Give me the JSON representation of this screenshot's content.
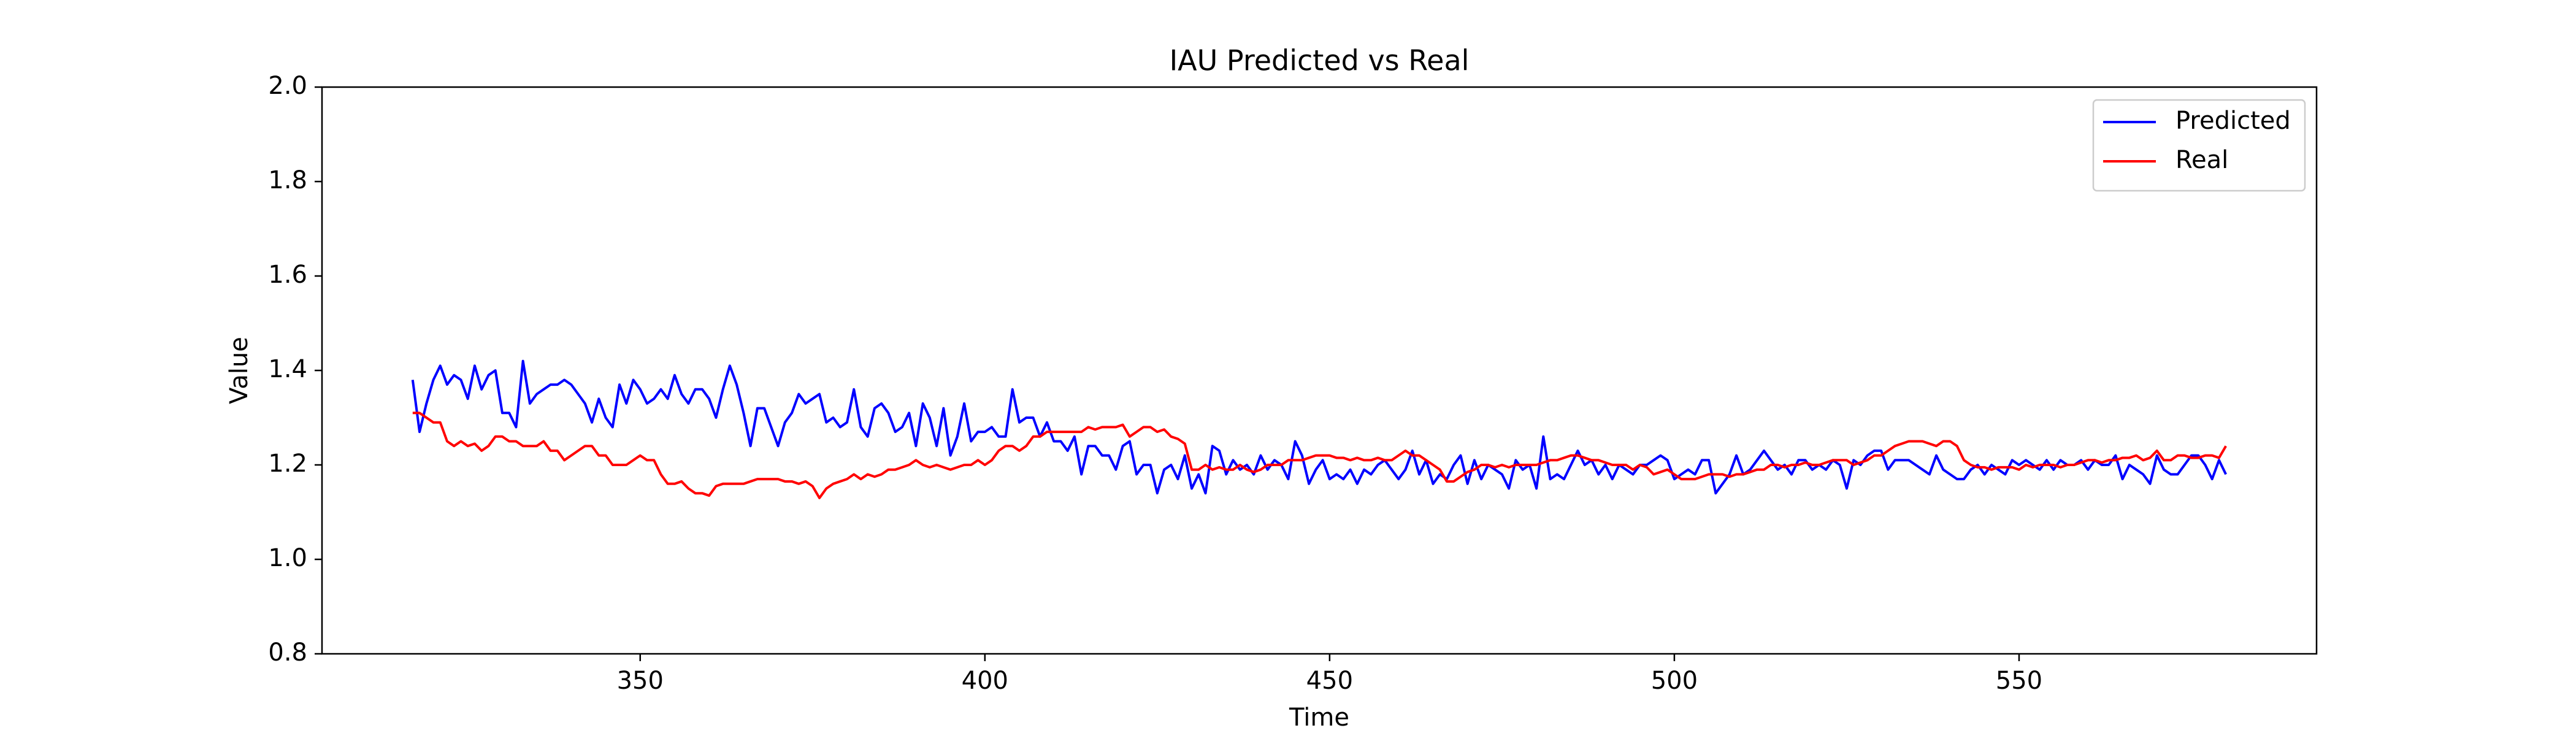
{
  "chart_data": {
    "type": "line",
    "title": "IAU Predicted vs Real",
    "x_label": "Time",
    "y_label": "Value",
    "x": [
      317,
      318,
      319,
      320,
      321,
      322,
      323,
      324,
      325,
      326,
      327,
      328,
      329,
      330,
      331,
      332,
      333,
      334,
      335,
      336,
      337,
      338,
      339,
      340,
      341,
      342,
      343,
      344,
      345,
      346,
      347,
      348,
      349,
      350,
      351,
      352,
      353,
      354,
      355,
      356,
      357,
      358,
      359,
      360,
      361,
      362,
      363,
      364,
      365,
      366,
      367,
      368,
      369,
      370,
      371,
      372,
      373,
      374,
      375,
      376,
      377,
      378,
      379,
      380,
      381,
      382,
      383,
      384,
      385,
      386,
      387,
      388,
      389,
      390,
      391,
      392,
      393,
      394,
      395,
      396,
      397,
      398,
      399,
      400,
      401,
      402,
      403,
      404,
      405,
      406,
      407,
      408,
      409,
      410,
      411,
      412,
      413,
      414,
      415,
      416,
      417,
      418,
      419,
      420,
      421,
      422,
      423,
      424,
      425,
      426,
      427,
      428,
      429,
      430,
      431,
      432,
      433,
      434,
      435,
      436,
      437,
      438,
      439,
      440,
      441,
      442,
      443,
      444,
      445,
      446,
      447,
      448,
      449,
      450,
      451,
      452,
      453,
      454,
      455,
      456,
      457,
      458,
      459,
      460,
      461,
      462,
      463,
      464,
      465,
      466,
      467,
      468,
      469,
      470,
      471,
      472,
      473,
      474,
      475,
      476,
      477,
      478,
      479,
      480,
      481,
      482,
      483,
      484,
      485,
      486,
      487,
      488,
      489,
      490,
      491,
      492,
      493,
      494,
      495,
      496,
      497,
      498,
      499,
      500,
      501,
      502,
      503,
      504,
      505,
      506,
      507,
      508,
      509,
      510,
      511,
      512,
      513,
      514,
      515,
      516,
      517,
      518,
      519,
      520,
      521,
      522,
      523,
      524,
      525,
      526,
      527,
      528,
      529,
      530,
      531,
      532,
      533,
      534,
      535,
      536,
      537,
      538,
      539,
      540,
      541,
      542,
      543,
      544,
      545,
      546,
      547,
      548,
      549,
      550,
      551,
      552,
      553,
      554,
      555,
      556,
      557,
      558,
      559,
      560,
      561,
      562,
      563,
      564,
      565,
      566,
      567,
      568,
      569,
      570,
      571,
      572,
      573,
      574,
      575,
      576,
      577,
      578,
      579,
      580
    ],
    "series": [
      {
        "name": "Predicted",
        "color": "#0000ff",
        "values": [
          1.38,
          1.27,
          1.33,
          1.38,
          1.41,
          1.37,
          1.39,
          1.38,
          1.34,
          1.41,
          1.36,
          1.39,
          1.4,
          1.31,
          1.31,
          1.28,
          1.42,
          1.33,
          1.35,
          1.36,
          1.37,
          1.37,
          1.38,
          1.37,
          1.35,
          1.33,
          1.29,
          1.34,
          1.3,
          1.28,
          1.37,
          1.33,
          1.38,
          1.36,
          1.33,
          1.34,
          1.36,
          1.34,
          1.39,
          1.35,
          1.33,
          1.36,
          1.36,
          1.34,
          1.3,
          1.36,
          1.41,
          1.37,
          1.31,
          1.24,
          1.32,
          1.32,
          1.28,
          1.24,
          1.29,
          1.31,
          1.35,
          1.33,
          1.34,
          1.35,
          1.29,
          1.3,
          1.28,
          1.29,
          1.36,
          1.28,
          1.26,
          1.32,
          1.33,
          1.31,
          1.27,
          1.28,
          1.31,
          1.24,
          1.33,
          1.3,
          1.24,
          1.32,
          1.22,
          1.26,
          1.33,
          1.25,
          1.27,
          1.27,
          1.28,
          1.26,
          1.26,
          1.36,
          1.29,
          1.3,
          1.3,
          1.26,
          1.29,
          1.25,
          1.25,
          1.23,
          1.26,
          1.18,
          1.24,
          1.24,
          1.22,
          1.22,
          1.19,
          1.24,
          1.25,
          1.18,
          1.2,
          1.2,
          1.14,
          1.19,
          1.2,
          1.17,
          1.22,
          1.15,
          1.18,
          1.14,
          1.24,
          1.23,
          1.18,
          1.21,
          1.19,
          1.2,
          1.18,
          1.22,
          1.19,
          1.21,
          1.2,
          1.17,
          1.25,
          1.22,
          1.16,
          1.19,
          1.21,
          1.17,
          1.18,
          1.17,
          1.19,
          1.16,
          1.19,
          1.18,
          1.2,
          1.21,
          1.19,
          1.17,
          1.19,
          1.23,
          1.18,
          1.21,
          1.16,
          1.18,
          1.17,
          1.2,
          1.22,
          1.16,
          1.21,
          1.17,
          1.2,
          1.19,
          1.18,
          1.15,
          1.21,
          1.19,
          1.2,
          1.15,
          1.26,
          1.17,
          1.18,
          1.17,
          1.2,
          1.23,
          1.2,
          1.21,
          1.18,
          1.2,
          1.17,
          1.2,
          1.19,
          1.18,
          1.2,
          1.2,
          1.21,
          1.22,
          1.21,
          1.17,
          1.18,
          1.19,
          1.18,
          1.21,
          1.21,
          1.14,
          1.16,
          1.18,
          1.22,
          1.18,
          1.19,
          1.21,
          1.23,
          1.21,
          1.19,
          1.2,
          1.18,
          1.21,
          1.21,
          1.19,
          1.2,
          1.19,
          1.21,
          1.2,
          1.15,
          1.21,
          1.2,
          1.22,
          1.23,
          1.23,
          1.19,
          1.21,
          1.21,
          1.21,
          1.2,
          1.19,
          1.18,
          1.22,
          1.19,
          1.18,
          1.17,
          1.17,
          1.19,
          1.2,
          1.18,
          1.2,
          1.19,
          1.18,
          1.21,
          1.2,
          1.21,
          1.2,
          1.19,
          1.21,
          1.19,
          1.21,
          1.2,
          1.2,
          1.21,
          1.19,
          1.21,
          1.2,
          1.2,
          1.22,
          1.17,
          1.2,
          1.19,
          1.18,
          1.16,
          1.22,
          1.19,
          1.18,
          1.18,
          1.2,
          1.22,
          1.22,
          1.2,
          1.17,
          1.21,
          1.18
        ]
      },
      {
        "name": "Real",
        "color": "#ff0000",
        "values": [
          1.31,
          1.31,
          1.3,
          1.29,
          1.29,
          1.25,
          1.24,
          1.25,
          1.24,
          1.245,
          1.23,
          1.24,
          1.26,
          1.26,
          1.25,
          1.25,
          1.24,
          1.24,
          1.24,
          1.25,
          1.23,
          1.23,
          1.21,
          1.22,
          1.23,
          1.24,
          1.24,
          1.22,
          1.22,
          1.2,
          1.2,
          1.2,
          1.21,
          1.22,
          1.21,
          1.21,
          1.18,
          1.16,
          1.16,
          1.165,
          1.15,
          1.14,
          1.14,
          1.135,
          1.155,
          1.16,
          1.16,
          1.16,
          1.16,
          1.165,
          1.17,
          1.17,
          1.17,
          1.17,
          1.165,
          1.165,
          1.16,
          1.165,
          1.155,
          1.13,
          1.15,
          1.16,
          1.165,
          1.17,
          1.18,
          1.17,
          1.18,
          1.175,
          1.18,
          1.19,
          1.19,
          1.195,
          1.2,
          1.21,
          1.2,
          1.195,
          1.2,
          1.195,
          1.19,
          1.195,
          1.2,
          1.2,
          1.21,
          1.2,
          1.21,
          1.23,
          1.24,
          1.24,
          1.23,
          1.24,
          1.26,
          1.26,
          1.27,
          1.27,
          1.27,
          1.27,
          1.27,
          1.27,
          1.28,
          1.275,
          1.28,
          1.28,
          1.28,
          1.285,
          1.26,
          1.27,
          1.28,
          1.28,
          1.27,
          1.275,
          1.26,
          1.255,
          1.245,
          1.19,
          1.19,
          1.2,
          1.19,
          1.195,
          1.19,
          1.19,
          1.2,
          1.19,
          1.185,
          1.19,
          1.2,
          1.2,
          1.2,
          1.21,
          1.21,
          1.21,
          1.215,
          1.22,
          1.22,
          1.22,
          1.215,
          1.215,
          1.21,
          1.215,
          1.21,
          1.21,
          1.215,
          1.21,
          1.21,
          1.22,
          1.23,
          1.22,
          1.22,
          1.21,
          1.2,
          1.19,
          1.165,
          1.165,
          1.175,
          1.185,
          1.19,
          1.2,
          1.2,
          1.195,
          1.2,
          1.195,
          1.2,
          1.2,
          1.2,
          1.2,
          1.205,
          1.21,
          1.21,
          1.215,
          1.22,
          1.22,
          1.215,
          1.21,
          1.21,
          1.205,
          1.2,
          1.2,
          1.2,
          1.19,
          1.2,
          1.195,
          1.18,
          1.185,
          1.19,
          1.18,
          1.17,
          1.17,
          1.17,
          1.175,
          1.18,
          1.18,
          1.18,
          1.175,
          1.18,
          1.18,
          1.185,
          1.19,
          1.19,
          1.2,
          1.2,
          1.195,
          1.2,
          1.2,
          1.205,
          1.2,
          1.2,
          1.205,
          1.21,
          1.21,
          1.21,
          1.2,
          1.205,
          1.21,
          1.22,
          1.22,
          1.23,
          1.24,
          1.245,
          1.25,
          1.25,
          1.25,
          1.245,
          1.24,
          1.25,
          1.25,
          1.24,
          1.21,
          1.2,
          1.195,
          1.195,
          1.19,
          1.195,
          1.195,
          1.195,
          1.19,
          1.2,
          1.195,
          1.2,
          1.2,
          1.2,
          1.195,
          1.2,
          1.2,
          1.205,
          1.21,
          1.21,
          1.205,
          1.21,
          1.21,
          1.215,
          1.215,
          1.22,
          1.21,
          1.215,
          1.23,
          1.21,
          1.21,
          1.22,
          1.22,
          1.215,
          1.215,
          1.22,
          1.22,
          1.215,
          1.24
        ]
      }
    ],
    "xlim": [
      303.85,
      593.15
    ],
    "xticks": [
      350,
      400,
      450,
      500,
      550
    ],
    "ylim": [
      0.8,
      2.0
    ],
    "yticks": [
      0.8,
      {
        "value": 1,
        "label": "1.0"
      },
      1.2,
      1.4,
      1.6,
      1.8,
      {
        "value": 2,
        "label": "2.0"
      }
    ],
    "legend": "upper right",
    "grid": false
  }
}
